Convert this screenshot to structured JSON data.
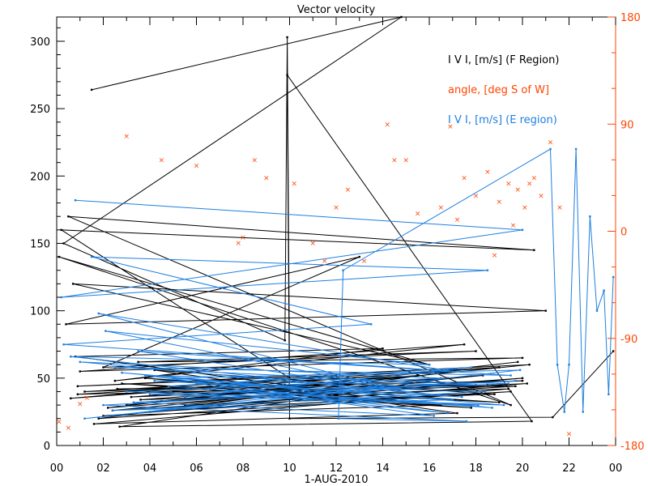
{
  "chart_data": {
    "type": "line",
    "title": "Vector velocity",
    "xlabel": "1-AUG-2010",
    "x_tick_labels": [
      "00",
      "02",
      "04",
      "06",
      "08",
      "10",
      "12",
      "14",
      "16",
      "18",
      "20",
      "22",
      "00"
    ],
    "xlim_hours": [
      0,
      24
    ],
    "ylim_left": [
      0,
      318
    ],
    "y_left_ticks": [
      0,
      50,
      100,
      150,
      200,
      250,
      300
    ],
    "y_left_tick_labels": [
      "0",
      "50",
      "100",
      "150",
      "200",
      "250",
      "300"
    ],
    "ylim_right": [
      -180,
      180
    ],
    "y_right_ticks": [
      -180,
      -90,
      0,
      90,
      180
    ],
    "y_right_tick_labels": [
      "-180",
      "-90",
      "0",
      "90",
      "180"
    ],
    "legend": [
      {
        "label": "I V I, [m/s] (F Region)",
        "color": "#000000"
      },
      {
        "label": "angle, [deg S of W]",
        "color": "#ff4500"
      },
      {
        "label": "I V I, [m/s] (E region)",
        "color": "#1e7fe0"
      }
    ],
    "colors": {
      "f_region": "#000000",
      "angle": "#ff4500",
      "e_region": "#1e7fe0",
      "right_axis": "#ff4500"
    },
    "series": [
      {
        "name": "F Region |V|",
        "axis": "left",
        "x": [
          1.5,
          14.8,
          0.3,
          9.8,
          9.9,
          10.0,
          0.2,
          20.5,
          0.5,
          19.5,
          0.1,
          16.0,
          0.7,
          21.0,
          0.4,
          13.0,
          2.0,
          18.0,
          3.5,
          20.0,
          1.0,
          17.5,
          2.5,
          14.0,
          0.8,
          9.8,
          1.2,
          19.0,
          0.6,
          12.0,
          0.9,
          20.3,
          3.0,
          19.8,
          2.2,
          20.0,
          4.0,
          19.5,
          1.8,
          17.0,
          0.9,
          18.5,
          2.6,
          20.0,
          3.2,
          15.5,
          4.5,
          20.2,
          2.0,
          16.5,
          3.8,
          19.0,
          2.8,
          17.8,
          5.0,
          19.7,
          2.4,
          18.3,
          3.6,
          19.4,
          1.6,
          17.2,
          4.2,
          18.8,
          5.5,
          16.8,
          2.7,
          20.4,
          9.9,
          10.0,
          21.3,
          23.9
        ],
        "y": [
          264,
          318,
          150,
          78,
          303,
          50,
          160,
          145,
          170,
          30,
          140,
          60,
          120,
          100,
          90,
          140,
          58,
          70,
          62,
          65,
          55,
          75,
          48,
          72,
          66,
          45,
          40,
          58,
          35,
          52,
          44,
          60,
          30,
          62,
          28,
          50,
          25,
          40,
          20,
          55,
          38,
          45,
          42,
          48,
          36,
          52,
          33,
          46,
          22,
          30,
          50,
          32,
          46,
          28,
          40,
          44,
          26,
          52,
          34,
          42,
          16,
          24,
          56,
          38,
          30,
          50,
          14,
          18,
          275,
          20,
          21,
          70
        ]
      },
      {
        "name": "E region |V|",
        "axis": "left",
        "x": [
          0.8,
          20.0,
          0.2,
          18.5,
          1.5,
          13.5,
          0.3,
          17.0,
          1.8,
          14.5,
          2.1,
          16.0,
          0.6,
          15.8,
          3.5,
          19.5,
          2.5,
          18.0,
          4.2,
          17.4,
          1.0,
          16.5,
          3.0,
          19.2,
          2.8,
          18.7,
          4.8,
          17.8,
          5.5,
          19.7,
          3.3,
          16.2,
          6.0,
          18.4,
          2.4,
          17.0,
          5.0,
          19.9,
          1.2,
          15.0,
          4.0,
          18.1,
          6.5,
          16.8,
          3.8,
          19.4,
          2.0,
          17.6,
          12.1,
          12.3,
          21.2,
          21.5,
          21.8,
          22.0,
          22.3,
          22.6,
          22.9,
          23.2,
          23.5,
          23.7,
          23.9
        ],
        "y": [
          182,
          160,
          110,
          130,
          140,
          90,
          75,
          55,
          98,
          42,
          85,
          60,
          66,
          38,
          70,
          52,
          58,
          45,
          48,
          36,
          62,
          50,
          40,
          30,
          54,
          28,
          44,
          58,
          36,
          48,
          32,
          22,
          46,
          40,
          26,
          34,
          50,
          56,
          20,
          44,
          38,
          30,
          42,
          24,
          52,
          46,
          30,
          18,
          20,
          130,
          220,
          60,
          25,
          60,
          220,
          25,
          170,
          100,
          115,
          38,
          125
        ]
      },
      {
        "name": "angle",
        "axis": "right",
        "x": [
          3.0,
          4.5,
          6.0,
          8.5,
          9.0,
          10.2,
          11.0,
          12.5,
          14.2,
          15.0,
          16.5,
          16.9,
          17.5,
          18.0,
          18.5,
          19.0,
          19.4,
          19.8,
          20.1,
          20.5,
          20.8,
          21.2,
          21.6,
          22.0,
          8.0,
          12.0,
          15.5,
          17.2,
          18.8,
          19.6,
          20.3,
          0.1,
          0.5,
          1.0,
          1.3,
          13.2,
          14.5,
          7.8,
          11.5
        ],
        "y": [
          80,
          60,
          55,
          60,
          45,
          40,
          -10,
          35,
          90,
          60,
          20,
          88,
          45,
          30,
          50,
          25,
          40,
          35,
          20,
          45,
          30,
          75,
          20,
          -170,
          -5,
          20,
          15,
          10,
          -20,
          5,
          40,
          -160,
          -165,
          -145,
          -140,
          -25,
          60,
          -10,
          -25
        ]
      }
    ]
  }
}
